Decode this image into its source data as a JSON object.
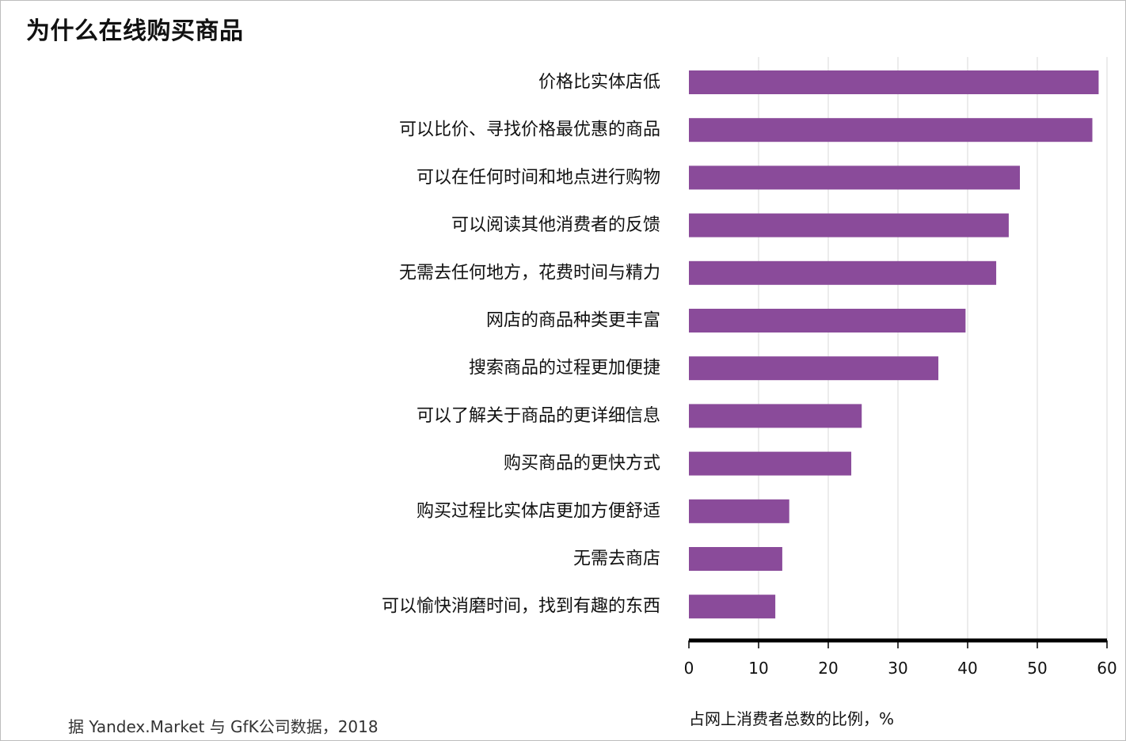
{
  "chart_data": {
    "type": "bar",
    "orientation": "horizontal",
    "title": "为什么在线购买商品",
    "xlabel": "占网上消费者总数的比例，%",
    "source": "据 Yandex.Market 与 GfK公司数据，2018",
    "categories": [
      "价格比实体店低",
      "可以比价、寻找价格最优惠的商品",
      "可以在任何时间和地点进行购物",
      "可以阅读其他消费者的反馈",
      "无需去任何地方，花费时间与精力",
      "网店的商品种类更丰富",
      "搜索商品的过程更加便捷",
      "可以了解关于商品的更详细信息",
      "购买商品的更快方式",
      "购买过程比实体店更加方便舒适",
      "无需去商店",
      "可以愉快消磨时间，找到有趣的东西"
    ],
    "values": [
      58.8,
      57.9,
      47.5,
      45.9,
      44.1,
      39.7,
      35.8,
      24.8,
      23.3,
      14.4,
      13.4,
      12.4
    ],
    "xlim": [
      0,
      60
    ],
    "xticks": [
      0,
      10,
      20,
      30,
      40,
      50,
      60
    ],
    "grid": true,
    "bar_color": "#8a4b9a",
    "axis_color": "#000000",
    "grid_color": "#d9d9d9"
  }
}
